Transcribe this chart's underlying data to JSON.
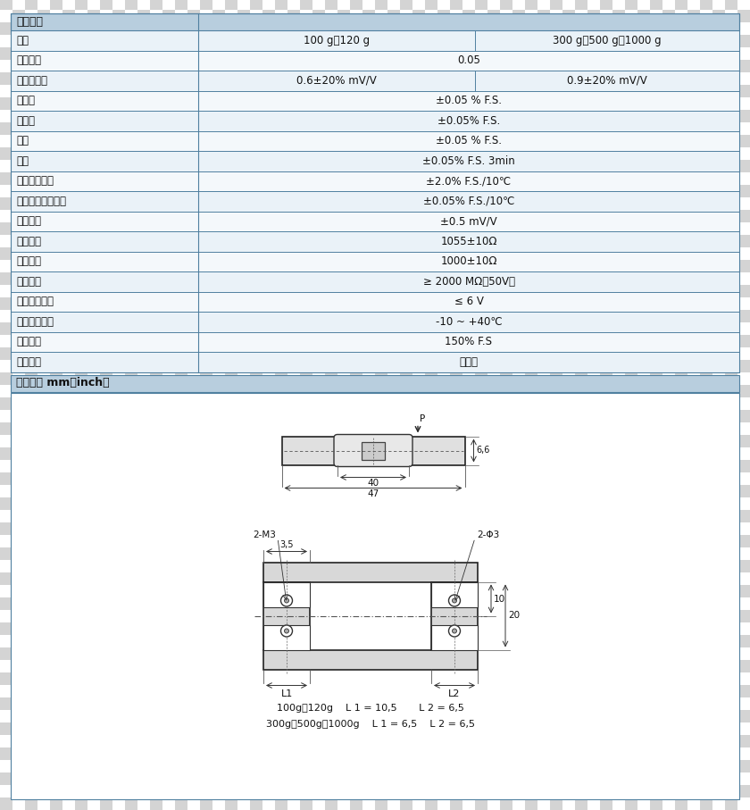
{
  "bg_color": "#c8d8e8",
  "border_color": "#5080a0",
  "text_color": "#111111",
  "title1": "技术指标",
  "title2": "外形尺寸 mm（inch）",
  "rows": [
    {
      "label": "量程",
      "col1": "100 g、120 g",
      "col2": "300 g、500 g、1000 g",
      "split": true
    },
    {
      "label": "综合误差",
      "col1": "0.05",
      "col2": "",
      "split": false
    },
    {
      "label": "输出灵敏度",
      "col1": "0.6±20% mV/V",
      "col2": "0.9±20% mV/V",
      "split": true
    },
    {
      "label": "非线性",
      "col1": "±0.05 % F.S.",
      "col2": "",
      "split": false
    },
    {
      "label": "重复性",
      "col1": "±0.05% F.S.",
      "col2": "",
      "split": false
    },
    {
      "label": "滞后",
      "col1": "±0.05 % F.S.",
      "col2": "",
      "split": false
    },
    {
      "label": "蠕变",
      "col1": "±0.05% F.S. 3min",
      "col2": "",
      "split": false
    },
    {
      "label": "零点温度漂移",
      "col1": "±2.0% F.S./10℃",
      "col2": "",
      "split": false
    },
    {
      "label": "额定输出温度漂移",
      "col1": "±0.05% F.S./10℃",
      "col2": "",
      "split": false
    },
    {
      "label": "零点输出",
      "col1": "±0.5 mV/V",
      "col2": "",
      "split": false
    },
    {
      "label": "输入电阻",
      "col1": "1055±10Ω",
      "col2": "",
      "split": false
    },
    {
      "label": "输出电阻",
      "col1": "1000±10Ω",
      "col2": "",
      "split": false
    },
    {
      "label": "绝缘电阻",
      "col1": "≥ 2000 MΩ（50V）",
      "col2": "",
      "split": false
    },
    {
      "label": "推荐激励电压",
      "col1": "≤ 6 V",
      "col2": "",
      "split": false
    },
    {
      "label": "工作温度范围",
      "col1": "-10 ~ +40℃",
      "col2": "",
      "split": false
    },
    {
      "label": "过载能力",
      "col1": "150% F.S",
      "col2": "",
      "split": false
    },
    {
      "label": "推荐用途",
      "col1": "手掌秤",
      "col2": "",
      "split": false
    }
  ],
  "dim_text1": "100g、120g    L 1 = 10,5       L 2 = 6,5",
  "dim_text2": "300g、500g、1000g    L 1 = 6,5    L 2 = 6,5",
  "checker_light": "#d4d4d4",
  "checker_dark": "#ffffff",
  "checker_size": 14
}
